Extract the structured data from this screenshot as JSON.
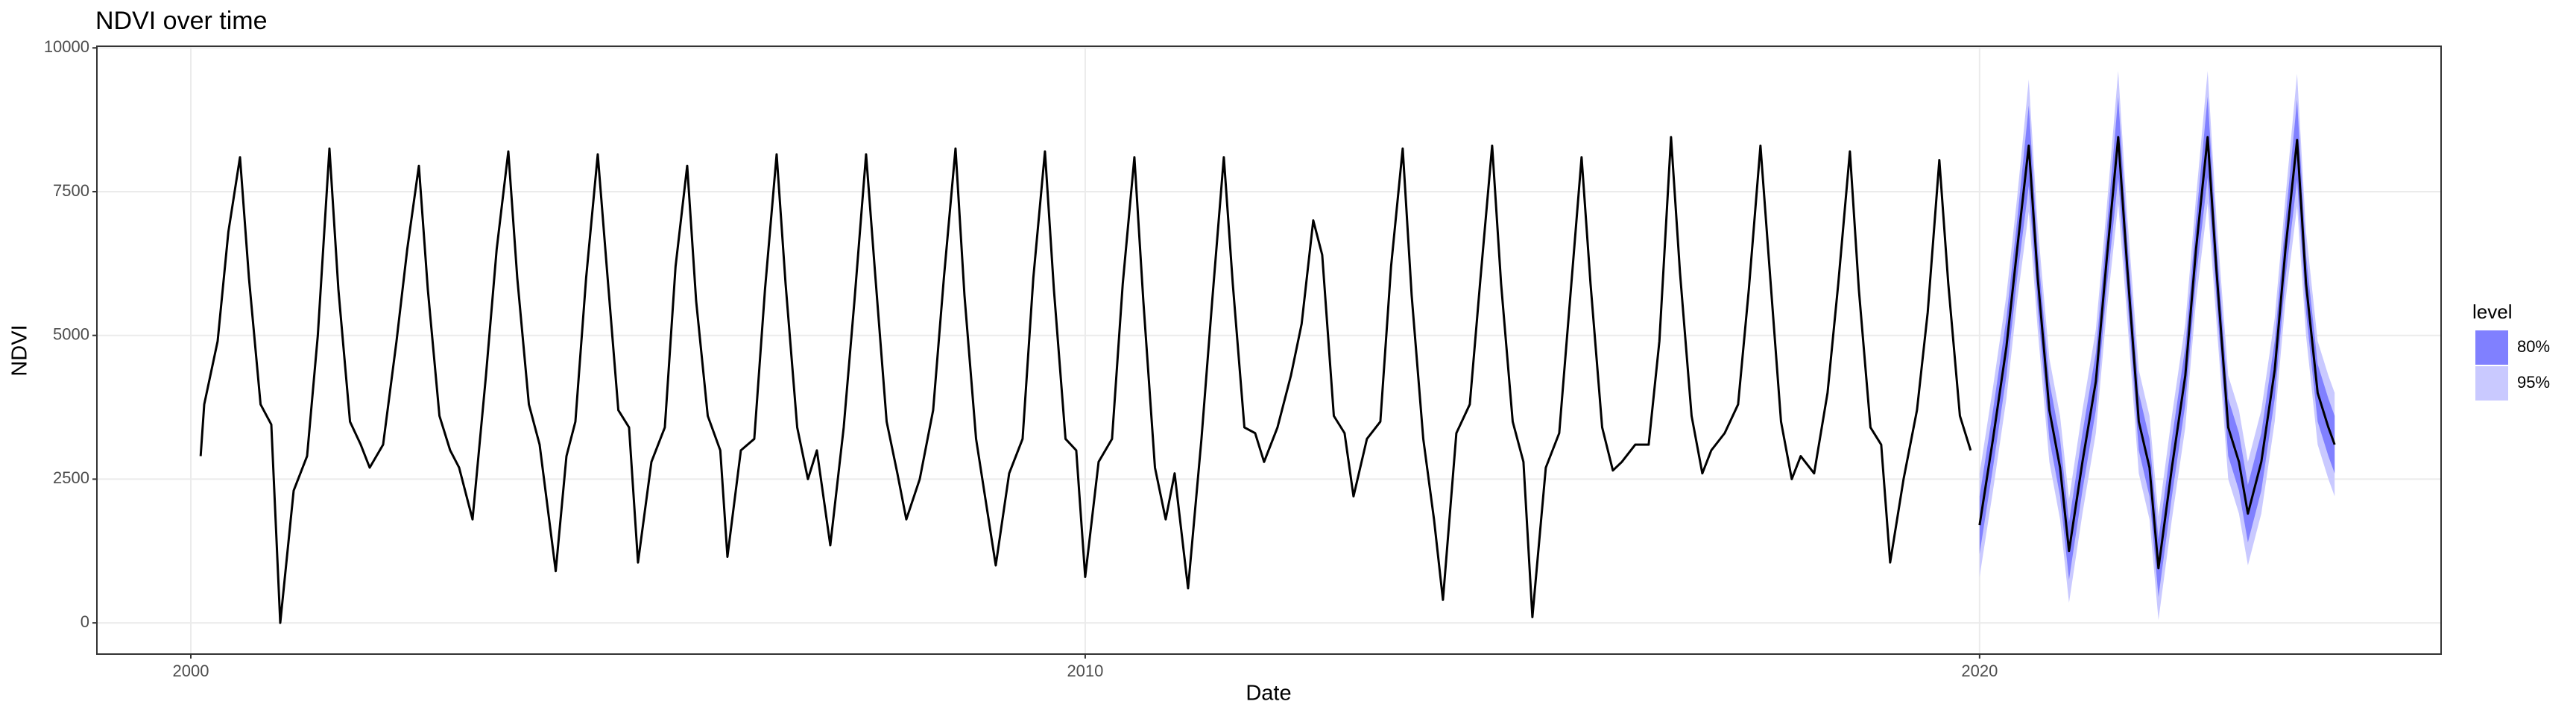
{
  "chart_data": {
    "type": "line",
    "title": "NDVI over time",
    "x_label": "Date",
    "y_label": "NDVI",
    "x": [
      2000.11,
      2000.15,
      2000.3,
      2000.42,
      2000.55,
      2000.65,
      2000.78,
      2000.9,
      2001.0,
      2001.15,
      2001.3,
      2001.42,
      2001.55,
      2001.65,
      2001.78,
      2001.9,
      2002.0,
      2002.15,
      2002.3,
      2002.42,
      2002.55,
      2002.65,
      2002.78,
      2002.9,
      2003.0,
      2003.15,
      2003.3,
      2003.42,
      2003.55,
      2003.65,
      2003.78,
      2003.9,
      2004.08,
      2004.2,
      2004.3,
      2004.42,
      2004.55,
      2004.65,
      2004.78,
      2004.9,
      2005.0,
      2005.15,
      2005.3,
      2005.42,
      2005.55,
      2005.65,
      2005.78,
      2005.92,
      2006.0,
      2006.15,
      2006.3,
      2006.42,
      2006.55,
      2006.65,
      2006.78,
      2006.9,
      2007.0,
      2007.15,
      2007.3,
      2007.42,
      2007.55,
      2007.65,
      2007.78,
      2007.9,
      2008.0,
      2008.15,
      2008.3,
      2008.42,
      2008.55,
      2008.65,
      2008.78,
      2008.9,
      2009.0,
      2009.15,
      2009.3,
      2009.42,
      2009.55,
      2009.65,
      2009.78,
      2009.9,
      2010.0,
      2010.15,
      2010.3,
      2010.42,
      2010.55,
      2010.65,
      2010.78,
      2010.9,
      2011.0,
      2011.15,
      2011.3,
      2011.42,
      2011.55,
      2011.65,
      2011.78,
      2011.9,
      2012.0,
      2012.15,
      2012.3,
      2012.42,
      2012.55,
      2012.65,
      2012.78,
      2012.9,
      2013.0,
      2013.15,
      2013.3,
      2013.42,
      2013.55,
      2013.65,
      2013.78,
      2013.9,
      2014.0,
      2014.15,
      2014.3,
      2014.42,
      2014.55,
      2014.65,
      2014.78,
      2014.9,
      2015.0,
      2015.15,
      2015.3,
      2015.42,
      2015.55,
      2015.65,
      2015.78,
      2015.9,
      2016.0,
      2016.15,
      2016.3,
      2016.42,
      2016.55,
      2016.65,
      2016.78,
      2016.9,
      2017.0,
      2017.15,
      2017.3,
      2017.42,
      2017.55,
      2017.65,
      2017.78,
      2017.9,
      2018.0,
      2018.15,
      2018.3,
      2018.42,
      2018.55,
      2018.65,
      2018.78,
      2018.9,
      2019.0,
      2019.15,
      2019.3,
      2019.42,
      2019.55,
      2019.65,
      2019.78,
      2019.9
    ],
    "values": [
      2900,
      3800,
      4900,
      6800,
      8100,
      6000,
      3800,
      3450,
      0,
      2300,
      2900,
      5000,
      8250,
      5800,
      3500,
      3100,
      2700,
      3100,
      4900,
      6500,
      7950,
      5800,
      3600,
      3000,
      2700,
      1800,
      4300,
      6500,
      8200,
      6000,
      3800,
      3100,
      900,
      2900,
      3500,
      6000,
      8150,
      6200,
      3700,
      3400,
      1050,
      2800,
      3400,
      6200,
      7950,
      5600,
      3600,
      3000,
      1150,
      3000,
      3200,
      5800,
      8150,
      5900,
      3400,
      2500,
      3000,
      1350,
      3400,
      5600,
      8150,
      6100,
      3500,
      2600,
      1800,
      2500,
      3700,
      6000,
      8250,
      5700,
      3200,
      2000,
      1000,
      2600,
      3200,
      6000,
      8200,
      5800,
      3200,
      3000,
      800,
      2800,
      3200,
      5900,
      8100,
      5600,
      2700,
      1800,
      2600,
      600,
      3200,
      5600,
      8100,
      5900,
      3400,
      3300,
      2800,
      3400,
      4300,
      5200,
      7000,
      6400,
      3600,
      3300,
      2200,
      3200,
      3500,
      6200,
      8250,
      5700,
      3200,
      1800,
      400,
      3300,
      3800,
      6000,
      8300,
      5900,
      3500,
      2800,
      100,
      2700,
      3300,
      5600,
      8100,
      5900,
      3400,
      2650,
      2800,
      3100,
      3100,
      4900,
      8450,
      6100,
      3600,
      2600,
      3000,
      3300,
      3800,
      5800,
      8300,
      6200,
      3500,
      2500,
      2900,
      2600,
      4000,
      5900,
      8200,
      5800,
      3400,
      3100,
      1050,
      2500,
      3700,
      5400,
      8050,
      5900,
      3600,
      3000
    ],
    "color": "#000000",
    "forecast": {
      "x": [
        2020.0,
        2020.15,
        2020.3,
        2020.42,
        2020.55,
        2020.65,
        2020.78,
        2020.9,
        2021.0,
        2021.15,
        2021.3,
        2021.42,
        2021.55,
        2021.65,
        2021.78,
        2021.9,
        2022.0,
        2022.15,
        2022.3,
        2022.42,
        2022.55,
        2022.65,
        2022.78,
        2022.9,
        2023.0,
        2023.15,
        2023.3,
        2023.42,
        2023.55,
        2023.65,
        2023.78,
        2023.9,
        2023.97
      ],
      "mean": [
        1700,
        3200,
        4800,
        6500,
        8300,
        6000,
        3700,
        2700,
        1250,
        2800,
        4200,
        6300,
        8450,
        6200,
        3500,
        2700,
        950,
        2700,
        4300,
        6500,
        8450,
        6100,
        3400,
        2800,
        1900,
        2800,
        4400,
        6500,
        8400,
        5900,
        4000,
        3400,
        3100
      ],
      "bands": [
        {
          "name": "80%",
          "color": "#8080ff",
          "lower": [
            1200,
            2700,
            4300,
            6000,
            7600,
            5500,
            3200,
            2200,
            750,
            2300,
            3700,
            5800,
            7750,
            5700,
            3000,
            2200,
            450,
            2200,
            3800,
            6000,
            7750,
            5600,
            2900,
            2300,
            1400,
            2300,
            3900,
            6000,
            7700,
            5400,
            3500,
            2900,
            2600
          ],
          "upper": [
            2200,
            3700,
            5300,
            7000,
            9000,
            6500,
            4200,
            3200,
            1750,
            3300,
            4700,
            6800,
            9150,
            6700,
            4000,
            3200,
            1450,
            3200,
            4800,
            7000,
            9150,
            6600,
            3900,
            3300,
            2400,
            3300,
            4900,
            7000,
            9100,
            6400,
            4500,
            3900,
            3600
          ]
        },
        {
          "name": "95%",
          "color": "#c9c9ff",
          "lower": [
            800,
            2300,
            3900,
            5600,
            7150,
            5100,
            2800,
            1800,
            350,
            1900,
            3300,
            5400,
            7300,
            5300,
            2600,
            1800,
            50,
            1800,
            3400,
            5600,
            7300,
            5200,
            2500,
            1900,
            1000,
            1900,
            3500,
            5600,
            7250,
            5000,
            3100,
            2500,
            2200
          ],
          "upper": [
            2600,
            4100,
            5700,
            7400,
            9450,
            6900,
            4600,
            3600,
            2150,
            3700,
            5100,
            7200,
            9600,
            7100,
            4400,
            3600,
            1850,
            3600,
            5200,
            7400,
            9600,
            7000,
            4300,
            3700,
            2800,
            3700,
            5300,
            7400,
            9550,
            6800,
            4900,
            4300,
            4000
          ]
        }
      ]
    },
    "legend_title": "level",
    "xlim": [
      1998.95,
      2025.16
    ],
    "xticks": [
      2000,
      2010,
      2020
    ],
    "ylim": [
      -543,
      10029
    ],
    "yticks": [
      0,
      2500,
      5000,
      7500,
      10000
    ],
    "grid": true
  }
}
